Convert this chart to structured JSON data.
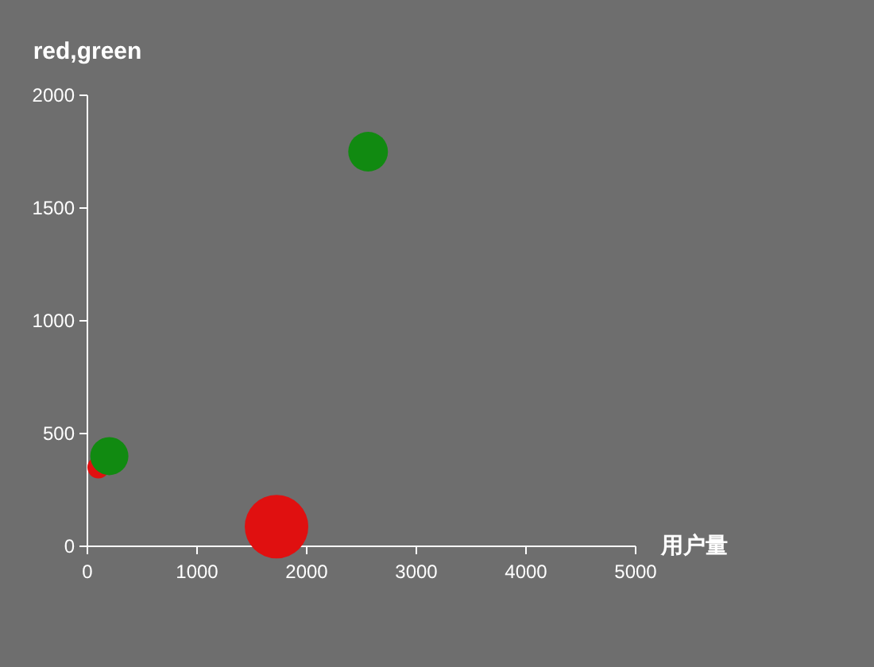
{
  "chart_data": {
    "type": "bubble",
    "xlabel": "用户量",
    "ylabel": "red,green",
    "xlim": [
      0,
      5000
    ],
    "ylim": [
      0,
      2000
    ],
    "xticks": [
      0,
      1000,
      2000,
      3000,
      4000,
      5000
    ],
    "yticks": [
      0,
      500,
      1000,
      1500,
      2000
    ],
    "series": [
      {
        "color": "#e01010",
        "x": [
          100,
          1725
        ],
        "values": [
          350,
          87
        ],
        "sizes": [
          0.12,
          1
        ]
      },
      {
        "color": "#118a11",
        "x": [
          200,
          2560
        ],
        "values": [
          400,
          1750
        ],
        "sizes": [
          0.36,
          0.39
        ]
      }
    ]
  }
}
